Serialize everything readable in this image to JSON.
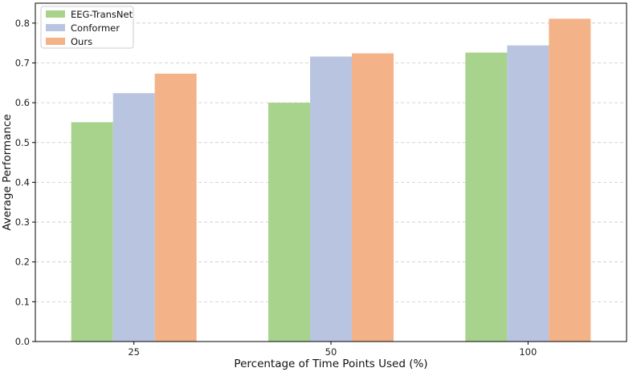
{
  "chart_data": {
    "type": "bar",
    "title": "",
    "xlabel": "Percentage of Time Points Used (%)",
    "ylabel": "Average Performance",
    "categories": [
      "25",
      "50",
      "100"
    ],
    "series": [
      {
        "name": "EEG-TransNet",
        "color": "#a8d38d",
        "values": [
          0.551,
          0.6,
          0.726
        ]
      },
      {
        "name": "Conformer",
        "color": "#b9c5e0",
        "values": [
          0.624,
          0.716,
          0.744
        ]
      },
      {
        "name": "Ours",
        "color": "#f4b288",
        "values": [
          0.673,
          0.724,
          0.811
        ]
      }
    ],
    "ylim": [
      0,
      0.85
    ],
    "yticks": [
      "0.0",
      "0.1",
      "0.2",
      "0.3",
      "0.4",
      "0.5",
      "0.6",
      "0.7",
      "0.8"
    ],
    "grid": "horizontal-dashed",
    "legend_position": "top-left"
  }
}
